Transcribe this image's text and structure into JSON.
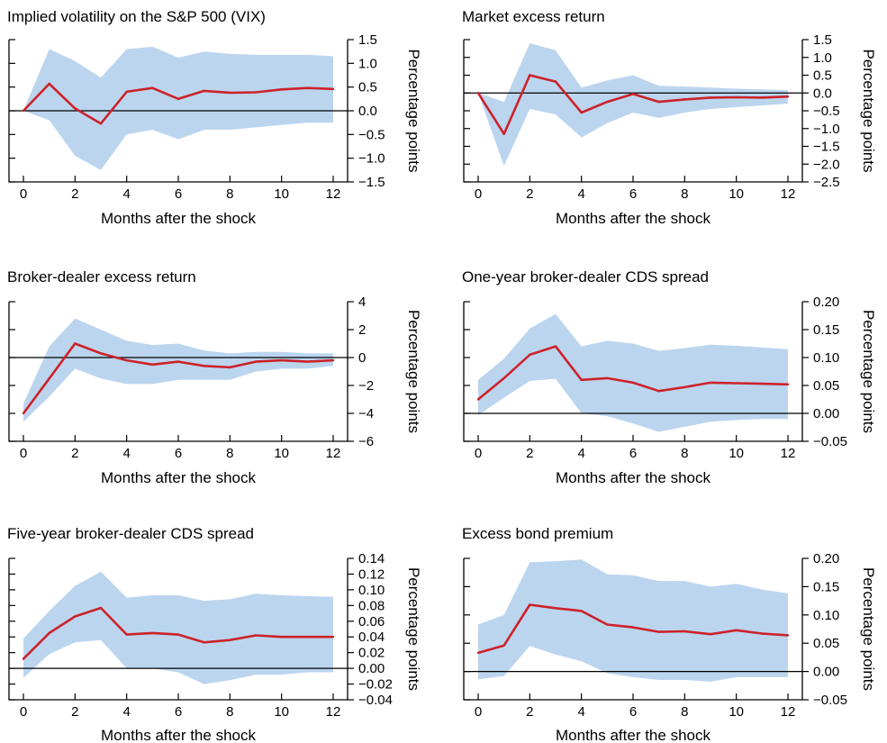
{
  "chart_data": [
    {
      "type": "line",
      "title": "Implied volatility on the S&P 500 (VIX)",
      "xlabel": "Months after the shock",
      "ylabel": "Percentage points",
      "xlim": [
        0,
        12
      ],
      "ylim": [
        -1.5,
        1.5
      ],
      "x_ticks": [
        0,
        2,
        4,
        6,
        8,
        10,
        12
      ],
      "y_ticks": [
        -1.5,
        -1.0,
        -0.5,
        0.0,
        0.5,
        1.0,
        1.5
      ],
      "y_tick_labels": [
        "−1.5",
        "−1.0",
        "−0.5",
        "0.0",
        "0.5",
        "1.0",
        "1.5"
      ],
      "x": [
        0,
        1,
        2,
        3,
        4,
        5,
        6,
        7,
        8,
        9,
        10,
        11,
        12
      ],
      "series": [
        {
          "role": "point estimate",
          "color": "#cc2229",
          "values": [
            0.0,
            0.57,
            0.05,
            -0.27,
            0.4,
            0.48,
            0.25,
            0.42,
            0.38,
            0.39,
            0.45,
            0.48,
            0.46
          ]
        },
        {
          "role": "confidence band lower",
          "color": "#bcd5ef",
          "values": [
            0.0,
            -0.2,
            -0.95,
            -1.25,
            -0.5,
            -0.4,
            -0.6,
            -0.4,
            -0.4,
            -0.35,
            -0.3,
            -0.25,
            -0.25
          ]
        },
        {
          "role": "confidence band upper",
          "color": "#bcd5ef",
          "values": [
            0.0,
            1.3,
            1.05,
            0.7,
            1.3,
            1.35,
            1.12,
            1.25,
            1.2,
            1.18,
            1.18,
            1.18,
            1.15
          ]
        }
      ],
      "grid": false
    },
    {
      "type": "line",
      "title": "Market excess return",
      "xlabel": "Months after the shock",
      "ylabel": "Percentage points",
      "xlim": [
        0,
        12
      ],
      "ylim": [
        -2.5,
        1.5
      ],
      "x_ticks": [
        0,
        2,
        4,
        6,
        8,
        10,
        12
      ],
      "y_ticks": [
        -2.5,
        -2.0,
        -1.5,
        -1.0,
        -0.5,
        0.0,
        0.5,
        1.0,
        1.5
      ],
      "y_tick_labels": [
        "−2.5",
        "−2.0",
        "−1.5",
        "−1.0",
        "−0.5",
        "0.0",
        "0.5",
        "1.0",
        "1.5"
      ],
      "x": [
        0,
        1,
        2,
        3,
        4,
        5,
        6,
        7,
        8,
        9,
        10,
        11,
        12
      ],
      "series": [
        {
          "role": "point estimate",
          "color": "#cc2229",
          "values": [
            0.0,
            -1.15,
            0.5,
            0.32,
            -0.55,
            -0.25,
            -0.03,
            -0.25,
            -0.18,
            -0.13,
            -0.12,
            -0.13,
            -0.1
          ]
        },
        {
          "role": "confidence band lower",
          "color": "#bcd5ef",
          "values": [
            0.0,
            -2.05,
            -0.45,
            -0.6,
            -1.25,
            -0.85,
            -0.55,
            -0.7,
            -0.55,
            -0.45,
            -0.4,
            -0.35,
            -0.3
          ]
        },
        {
          "role": "confidence band upper",
          "color": "#bcd5ef",
          "values": [
            0.0,
            -0.25,
            1.4,
            1.2,
            0.15,
            0.35,
            0.5,
            0.2,
            0.18,
            0.15,
            0.12,
            0.1,
            0.08
          ]
        }
      ],
      "grid": false
    },
    {
      "type": "line",
      "title": "Broker-dealer excess return",
      "xlabel": "Months after the shock",
      "ylabel": "Percentage points",
      "xlim": [
        0,
        12
      ],
      "ylim": [
        -6,
        4
      ],
      "x_ticks": [
        0,
        2,
        4,
        6,
        8,
        10,
        12
      ],
      "y_ticks": [
        -6,
        -4,
        -2,
        0,
        2,
        4
      ],
      "y_tick_labels": [
        "−6",
        "−4",
        "−2",
        "0",
        "2",
        "4"
      ],
      "x": [
        0,
        1,
        2,
        3,
        4,
        5,
        6,
        7,
        8,
        9,
        10,
        11,
        12
      ],
      "series": [
        {
          "role": "point estimate",
          "color": "#cc2229",
          "values": [
            -4.0,
            -1.5,
            1.0,
            0.3,
            -0.2,
            -0.5,
            -0.3,
            -0.6,
            -0.7,
            -0.3,
            -0.2,
            -0.3,
            -0.2
          ]
        },
        {
          "role": "confidence band lower",
          "color": "#bcd5ef",
          "values": [
            -4.6,
            -2.8,
            -0.8,
            -1.5,
            -1.9,
            -1.9,
            -1.6,
            -1.6,
            -1.6,
            -1.0,
            -0.8,
            -0.8,
            -0.6
          ]
        },
        {
          "role": "confidence band upper",
          "color": "#bcd5ef",
          "values": [
            -3.3,
            0.8,
            2.8,
            2.0,
            1.2,
            0.9,
            1.0,
            0.5,
            0.3,
            0.4,
            0.4,
            0.3,
            0.3
          ]
        }
      ],
      "grid": false
    },
    {
      "type": "line",
      "title": "One-year broker-dealer CDS spread",
      "xlabel": "Months after the shock",
      "ylabel": "Percentage points",
      "xlim": [
        0,
        12
      ],
      "ylim": [
        -0.05,
        0.2
      ],
      "x_ticks": [
        0,
        2,
        4,
        6,
        8,
        10,
        12
      ],
      "y_ticks": [
        -0.05,
        0.0,
        0.05,
        0.1,
        0.15,
        0.2
      ],
      "y_tick_labels": [
        "−0.05",
        "0.00",
        "0.05",
        "0.10",
        "0.15",
        "0.20"
      ],
      "x": [
        0,
        1,
        2,
        3,
        4,
        5,
        6,
        7,
        8,
        9,
        10,
        11,
        12
      ],
      "series": [
        {
          "role": "point estimate",
          "color": "#cc2229",
          "values": [
            0.025,
            0.063,
            0.105,
            0.12,
            0.06,
            0.063,
            0.055,
            0.04,
            0.047,
            0.055,
            0.054,
            0.053,
            0.052
          ]
        },
        {
          "role": "confidence band lower",
          "color": "#bcd5ef",
          "values": [
            -0.003,
            0.028,
            0.058,
            0.062,
            0.0,
            -0.005,
            -0.018,
            -0.033,
            -0.024,
            -0.015,
            -0.012,
            -0.01,
            -0.01
          ]
        },
        {
          "role": "confidence band upper",
          "color": "#bcd5ef",
          "values": [
            0.06,
            0.098,
            0.152,
            0.178,
            0.12,
            0.13,
            0.125,
            0.112,
            0.117,
            0.123,
            0.121,
            0.118,
            0.115
          ]
        }
      ],
      "grid": false
    },
    {
      "type": "line",
      "title": "Five-year broker-dealer CDS spread",
      "xlabel": "Months after the shock",
      "ylabel": "Percentage points",
      "xlim": [
        0,
        12
      ],
      "ylim": [
        -0.04,
        0.14
      ],
      "x_ticks": [
        0,
        2,
        4,
        6,
        8,
        10,
        12
      ],
      "y_ticks": [
        -0.04,
        -0.02,
        0.0,
        0.02,
        0.04,
        0.06,
        0.08,
        0.1,
        0.12,
        0.14
      ],
      "y_tick_labels": [
        "−0.04",
        "−0.02",
        "0.00",
        "0.02",
        "0.04",
        "0.06",
        "0.08",
        "0.10",
        "0.12",
        "0.14"
      ],
      "x": [
        0,
        1,
        2,
        3,
        4,
        5,
        6,
        7,
        8,
        9,
        10,
        11,
        12
      ],
      "series": [
        {
          "role": "point estimate",
          "color": "#cc2229",
          "values": [
            0.012,
            0.045,
            0.066,
            0.077,
            0.043,
            0.045,
            0.043,
            0.033,
            0.036,
            0.042,
            0.04,
            0.04,
            0.04
          ]
        },
        {
          "role": "confidence band lower",
          "color": "#bcd5ef",
          "values": [
            -0.012,
            0.018,
            0.033,
            0.036,
            0.0,
            0.0,
            -0.005,
            -0.02,
            -0.015,
            -0.008,
            -0.008,
            -0.005,
            -0.005
          ]
        },
        {
          "role": "confidence band upper",
          "color": "#bcd5ef",
          "values": [
            0.038,
            0.073,
            0.105,
            0.123,
            0.09,
            0.093,
            0.093,
            0.086,
            0.088,
            0.095,
            0.093,
            0.092,
            0.091
          ]
        }
      ],
      "grid": false
    },
    {
      "type": "line",
      "title": "Excess bond premium",
      "xlabel": "Months after the shock",
      "ylabel": "Percentage points",
      "xlim": [
        0,
        12
      ],
      "ylim": [
        -0.05,
        0.2
      ],
      "x_ticks": [
        0,
        2,
        4,
        6,
        8,
        10,
        12
      ],
      "y_ticks": [
        -0.05,
        0.0,
        0.05,
        0.1,
        0.15,
        0.2
      ],
      "y_tick_labels": [
        "−0.05",
        "0.00",
        "0.05",
        "0.10",
        "0.15",
        "0.20"
      ],
      "x": [
        0,
        1,
        2,
        3,
        4,
        5,
        6,
        7,
        8,
        9,
        10,
        11,
        12
      ],
      "series": [
        {
          "role": "point estimate",
          "color": "#cc2229",
          "values": [
            0.033,
            0.046,
            0.118,
            0.112,
            0.107,
            0.083,
            0.078,
            0.07,
            0.071,
            0.066,
            0.073,
            0.067,
            0.064
          ]
        },
        {
          "role": "confidence band lower",
          "color": "#bcd5ef",
          "values": [
            -0.014,
            -0.008,
            0.045,
            0.03,
            0.018,
            -0.003,
            -0.01,
            -0.015,
            -0.015,
            -0.018,
            -0.01,
            -0.01,
            -0.01
          ]
        },
        {
          "role": "confidence band upper",
          "color": "#bcd5ef",
          "values": [
            0.083,
            0.1,
            0.193,
            0.195,
            0.198,
            0.172,
            0.17,
            0.16,
            0.16,
            0.15,
            0.155,
            0.145,
            0.138
          ]
        }
      ],
      "grid": false
    }
  ]
}
